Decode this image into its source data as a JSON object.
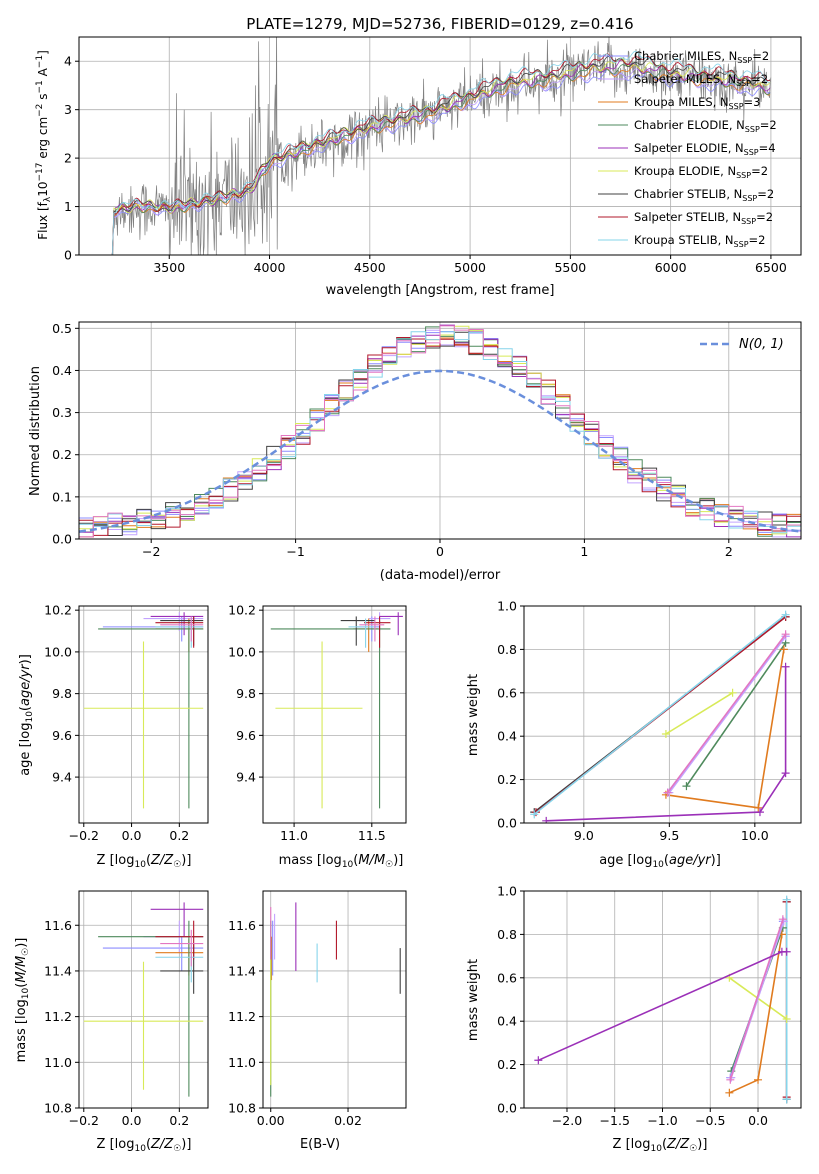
{
  "title": "PLATE=1279, MJD=52736, FIBERID=0129, z=0.416",
  "colors": {
    "chabrier_miles": "#8c8cff",
    "salpeter_miles": "#c3a3ff",
    "kroupa_miles": "#e07b1f",
    "chabrier_elodie": "#4e8a5c",
    "salpeter_elodie": "#9b30b8",
    "kroupa_elodie": "#d8ea58",
    "chabrier_stelib": "#404040",
    "salpeter_stelib": "#b2182b",
    "kroupa_stelib": "#86d4ea",
    "pink": "#e377c2",
    "data": "#808080",
    "normal": "#6a8fdc"
  },
  "chart_data": [
    {
      "id": "spectrum",
      "type": "line",
      "xlabel": "wavelength [Angstrom, rest frame]",
      "ylabel": "Flux [f_λ 10^-17 erg cm^-2 s^-1 A^-1]",
      "xlim": [
        3050,
        6650
      ],
      "ylim": [
        0,
        4.5
      ],
      "xticks": [
        "3500",
        "4000",
        "4500",
        "5000",
        "5500",
        "6000",
        "6500"
      ],
      "yticks": [
        "0",
        "1",
        "2",
        "3",
        "4"
      ],
      "legend_position": "top-right",
      "legend": [
        {
          "model": "Chabrier MILES",
          "nssp": "2",
          "color": "#8c8cff"
        },
        {
          "model": "Salpeter MILES",
          "nssp": "2",
          "color": "#c3a3ff"
        },
        {
          "model": "Kroupa MILES",
          "nssp": "3",
          "color": "#e07b1f"
        },
        {
          "model": "Chabrier ELODIE",
          "nssp": "2",
          "color": "#4e8a5c"
        },
        {
          "model": "Salpeter ELODIE",
          "nssp": "4",
          "color": "#9b30b8"
        },
        {
          "model": "Kroupa ELODIE",
          "nssp": "2",
          "color": "#d8ea58"
        },
        {
          "model": "Chabrier STELIB",
          "nssp": "2",
          "color": "#404040"
        },
        {
          "model": "Salpeter STELIB",
          "nssp": "2",
          "color": "#b2182b"
        },
        {
          "model": "Kroupa STELIB",
          "nssp": "2",
          "color": "#86d4ea"
        }
      ],
      "continuum_anchors": [
        [
          3200,
          0.9
        ],
        [
          3350,
          1.0
        ],
        [
          3500,
          0.95
        ],
        [
          3700,
          1.1
        ],
        [
          3900,
          1.3
        ],
        [
          4000,
          1.9
        ],
        [
          4200,
          2.2
        ],
        [
          4500,
          2.6
        ],
        [
          4800,
          2.9
        ],
        [
          5000,
          3.2
        ],
        [
          5200,
          3.5
        ],
        [
          5400,
          3.6
        ],
        [
          5600,
          3.8
        ],
        [
          5800,
          3.85
        ],
        [
          6000,
          3.7
        ],
        [
          6200,
          3.6
        ],
        [
          6400,
          3.5
        ],
        [
          6500,
          3.4
        ]
      ]
    },
    {
      "id": "residuals",
      "type": "line",
      "xlabel": "(data-model)/error",
      "ylabel": "Normed distribution",
      "xlim": [
        -2.5,
        2.5
      ],
      "ylim": [
        0,
        0.515
      ],
      "xticks": [
        "−2",
        "−1",
        "0",
        "1",
        "2"
      ],
      "yticks": [
        "0.0",
        "0.1",
        "0.2",
        "0.3",
        "0.4",
        "0.5"
      ],
      "legend_position": "top-right",
      "normal_label": "N(0, 1)",
      "bin_width": 0.1
    },
    {
      "id": "age-vs-Z",
      "type": "scatter",
      "xlabel": "Z [log10(Z/Z☉)]",
      "ylabel": "age [log10(age/yr)]",
      "xlim": [
        -0.22,
        0.32
      ],
      "ylim": [
        9.18,
        10.22
      ],
      "xticks": [
        "−0.2",
        "0.0",
        "0.2"
      ],
      "yticks": [
        "9.4",
        "9.6",
        "9.8",
        "10.0",
        "10.2"
      ]
    },
    {
      "id": "age-vs-mass",
      "type": "scatter",
      "xlabel": "mass [log10(M/M☉)]",
      "xlim": [
        10.8,
        11.72
      ],
      "ylim": [
        9.18,
        10.22
      ],
      "xticks": [
        "11.0",
        "11.5"
      ],
      "yticks": [
        "9.4",
        "9.6",
        "9.8",
        "10.0",
        "10.2"
      ]
    },
    {
      "id": "weight-vs-age",
      "type": "line",
      "xlabel": "age [log10(age/yr)]",
      "ylabel": "mass weight",
      "xlim": [
        8.65,
        10.27
      ],
      "ylim": [
        0,
        1
      ],
      "xticks": [
        "9.0",
        "9.5",
        "10.0"
      ],
      "yticks": [
        "0.0",
        "0.2",
        "0.4",
        "0.6",
        "0.8",
        "1.0"
      ]
    },
    {
      "id": "mass-vs-Z",
      "type": "scatter",
      "xlabel": "Z [log10(Z/Z☉)]",
      "ylabel": "mass [log10(M/M☉)]",
      "xlim": [
        -0.22,
        0.32
      ],
      "ylim": [
        10.8,
        11.75
      ],
      "xticks": [
        "−0.2",
        "0.0",
        "0.2"
      ],
      "yticks": [
        "10.8",
        "11.0",
        "11.2",
        "11.4",
        "11.6"
      ]
    },
    {
      "id": "mass-vs-ebv",
      "type": "scatter",
      "xlabel": "E(B-V)",
      "xlim": [
        -0.002,
        0.035
      ],
      "ylim": [
        10.8,
        11.75
      ],
      "xticks": [
        "0.00",
        "0.02"
      ],
      "yticks": [
        "10.8",
        "11.0",
        "11.2",
        "11.4",
        "11.6"
      ]
    },
    {
      "id": "weight-vs-Z",
      "type": "line",
      "xlabel": "Z [log10(Z/Z☉)]",
      "ylabel": "mass weight",
      "xlim": [
        -2.45,
        0.45
      ],
      "ylim": [
        0,
        1
      ],
      "xticks": [
        "−2.0",
        "−1.5",
        "−1.0",
        "−0.5",
        "0.0"
      ],
      "yticks": [
        "0.0",
        "0.2",
        "0.4",
        "0.6",
        "0.8",
        "1.0"
      ]
    }
  ],
  "models": [
    {
      "c": "#8c8cff",
      "Z": 0.21,
      "Zlo": -0.12,
      "Zhi": 0.3,
      "age": 10.12,
      "ageLo": 10.05,
      "ageHi": 10.17,
      "mass": 11.5,
      "mLo": 11.4,
      "mHi": 11.55,
      "ebv": 0.0005,
      "ebvLo": 11.38,
      "ebvHi": 11.62
    },
    {
      "c": "#c3a3ff",
      "Z": 0.2,
      "Zlo": 0.05,
      "Zhi": 0.3,
      "age": 10.16,
      "ageLo": 10.1,
      "ageHi": 10.19,
      "mass": 11.55,
      "mLo": 11.48,
      "mHi": 11.62,
      "ebv": 0.001,
      "ebvLo": 11.45,
      "ebvHi": 11.65
    },
    {
      "c": "#e07b1f",
      "Z": 0.24,
      "Zlo": 0.1,
      "Zhi": 0.3,
      "age": 10.11,
      "ageLo": 10.0,
      "ageHi": 10.16,
      "mass": 11.48,
      "mLo": 11.38,
      "mHi": 11.54,
      "ebv": 0.0002,
      "ebvLo": 11.36,
      "ebvHi": 11.55
    },
    {
      "c": "#4e8a5c",
      "Z": 0.24,
      "Zlo": -0.14,
      "Zhi": 0.3,
      "age": 10.11,
      "ageLo": 9.25,
      "ageHi": 10.15,
      "mass": 11.55,
      "mLo": 10.85,
      "mHi": 11.62,
      "ebv": 0.0,
      "ebvLo": 10.85,
      "ebvHi": 11.62
    },
    {
      "c": "#9b30b8",
      "Z": 0.22,
      "Zlo": 0.08,
      "Zhi": 0.3,
      "age": 10.17,
      "ageLo": 10.08,
      "ageHi": 10.19,
      "mass": 11.67,
      "mLo": 11.55,
      "mHi": 11.7,
      "ebv": 0.0065,
      "ebvLo": 11.4,
      "ebvHi": 11.7
    },
    {
      "c": "#d8ea58",
      "Z": 0.05,
      "Zlo": -0.2,
      "Zhi": 0.3,
      "age": 9.73,
      "ageLo": 9.25,
      "ageHi": 10.05,
      "mass": 11.18,
      "mLo": 10.88,
      "mHi": 11.44,
      "ebv": 0.0,
      "ebvLo": 10.9,
      "ebvHi": 11.45
    },
    {
      "c": "#404040",
      "Z": 0.26,
      "Zlo": 0.12,
      "Zhi": 0.3,
      "age": 10.15,
      "ageLo": 10.03,
      "ageHi": 10.17,
      "mass": 11.4,
      "mLo": 11.3,
      "mHi": 11.52,
      "ebv": 0.0335,
      "ebvLo": 11.3,
      "ebvHi": 11.5
    },
    {
      "c": "#b2182b",
      "Z": 0.26,
      "Zlo": 0.1,
      "Zhi": 0.3,
      "age": 10.14,
      "ageLo": 10.02,
      "ageHi": 10.17,
      "mass": 11.55,
      "mLo": 11.45,
      "mHi": 11.62,
      "ebv": 0.017,
      "ebvLo": 11.45,
      "ebvHi": 11.62
    },
    {
      "c": "#86d4ea",
      "Z": 0.25,
      "Zlo": 0.1,
      "Zhi": 0.3,
      "age": 10.12,
      "ageLo": 10.02,
      "ageHi": 10.16,
      "mass": 11.46,
      "mLo": 11.35,
      "mHi": 11.52,
      "ebv": 0.012,
      "ebvLo": 11.35,
      "ebvHi": 11.52
    },
    {
      "c": "#e377c2",
      "Z": 0.25,
      "Zlo": 0.12,
      "Zhi": 0.3,
      "age": 10.13,
      "ageLo": 10.05,
      "ageHi": 10.17,
      "mass": 11.52,
      "mLo": 11.42,
      "mHi": 11.58,
      "ebv": 0.0,
      "ebvLo": 11.45,
      "ebvHi": 11.68
    }
  ],
  "weight_age_lines": [
    {
      "c": "#404040",
      "pts": [
        [
          8.71,
          0.05
        ],
        [
          10.18,
          0.95
        ]
      ]
    },
    {
      "c": "#b2182b",
      "pts": [
        [
          8.72,
          0.05
        ],
        [
          10.18,
          0.95
        ]
      ]
    },
    {
      "c": "#86d4ea",
      "pts": [
        [
          8.71,
          0.04
        ],
        [
          10.18,
          0.96
        ]
      ]
    },
    {
      "c": "#4e8a5c",
      "pts": [
        [
          9.6,
          0.17
        ],
        [
          10.18,
          0.83
        ]
      ]
    },
    {
      "c": "#d8ea58",
      "pts": [
        [
          9.48,
          0.41
        ],
        [
          9.87,
          0.6
        ]
      ]
    },
    {
      "c": "#e07b1f",
      "pts": [
        [
          9.48,
          0.13
        ],
        [
          10.02,
          0.07
        ],
        [
          10.17,
          0.8
        ]
      ]
    },
    {
      "c": "#8c8cff",
      "pts": [
        [
          9.49,
          0.14
        ],
        [
          10.18,
          0.86
        ]
      ]
    },
    {
      "c": "#c3a3ff",
      "pts": [
        [
          9.5,
          0.14
        ],
        [
          10.18,
          0.86
        ]
      ]
    },
    {
      "c": "#e377c2",
      "pts": [
        [
          9.49,
          0.14
        ],
        [
          10.18,
          0.87
        ]
      ]
    },
    {
      "c": "#9b30b8",
      "pts": [
        [
          8.78,
          0.01
        ],
        [
          10.03,
          0.05
        ],
        [
          10.18,
          0.23
        ],
        [
          10.18,
          0.72
        ]
      ]
    }
  ],
  "weight_Z_lines": [
    {
      "c": "#404040",
      "pts": [
        [
          0.3,
          0.04
        ],
        [
          0.3,
          0.95
        ]
      ]
    },
    {
      "c": "#b2182b",
      "pts": [
        [
          0.3,
          0.05
        ],
        [
          0.3,
          0.95
        ]
      ]
    },
    {
      "c": "#86d4ea",
      "pts": [
        [
          0.3,
          0.04
        ],
        [
          0.3,
          0.96
        ]
      ]
    },
    {
      "c": "#4e8a5c",
      "pts": [
        [
          -0.28,
          0.17
        ],
        [
          0.26,
          0.83
        ]
      ]
    },
    {
      "c": "#d8ea58",
      "pts": [
        [
          -0.3,
          0.6
        ],
        [
          0.3,
          0.41
        ]
      ]
    },
    {
      "c": "#e07b1f",
      "pts": [
        [
          -0.3,
          0.07
        ],
        [
          0.0,
          0.13
        ],
        [
          0.25,
          0.8
        ]
      ]
    },
    {
      "c": "#8c8cff",
      "pts": [
        [
          -0.29,
          0.14
        ],
        [
          0.26,
          0.86
        ]
      ]
    },
    {
      "c": "#c3a3ff",
      "pts": [
        [
          -0.28,
          0.14
        ],
        [
          0.27,
          0.86
        ]
      ]
    },
    {
      "c": "#e377c2",
      "pts": [
        [
          -0.29,
          0.13
        ],
        [
          0.26,
          0.87
        ]
      ]
    },
    {
      "c": "#9b30b8",
      "pts": [
        [
          -2.3,
          0.22
        ],
        [
          0.25,
          0.72
        ],
        [
          0.3,
          0.72
        ]
      ]
    }
  ]
}
